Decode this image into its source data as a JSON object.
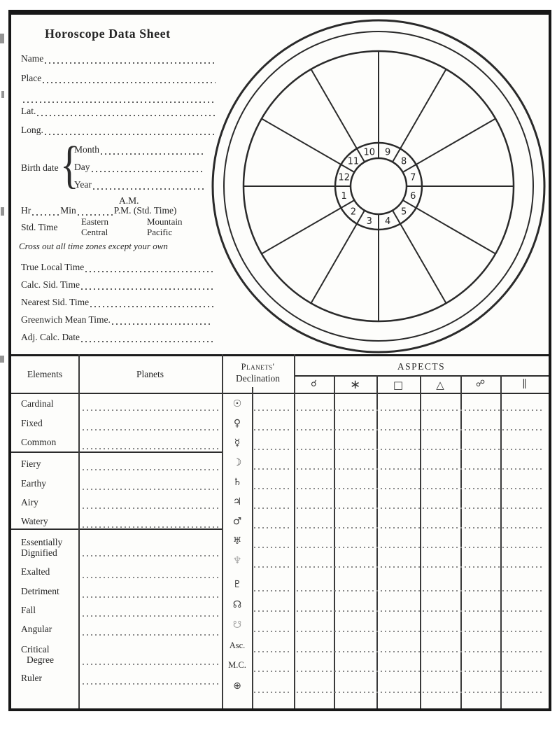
{
  "title": "Horoscope Data Sheet",
  "fields": {
    "name": "Name",
    "place": "Place",
    "lat": "Lat.",
    "long": "Long.",
    "true_local_time": "True Local Time",
    "calc_sid_time": "Calc. Sid. Time",
    "nearest_sid_time": "Nearest Sid. Time",
    "greenwich_mean_time": "Greenwich Mean Time.",
    "adj_calc_date": "Adj. Calc. Date"
  },
  "birth_date": {
    "label": "Birth date",
    "month": "Month",
    "day": "Day",
    "year": "Year"
  },
  "time_row": {
    "am": "A.M.",
    "hr": "Hr",
    "min": "Min",
    "pm": "P.M. (Std. Time)"
  },
  "std_time": {
    "label": "Std. Time",
    "zone1": "Eastern",
    "zone2": "Central",
    "zone3": "Mountain",
    "zone4": "Pacific"
  },
  "note": "Cross out all time zones except your own",
  "wheel": {
    "houses": [
      "1",
      "2",
      "3",
      "4",
      "5",
      "6",
      "7",
      "8",
      "9",
      "10",
      "11",
      "12"
    ]
  },
  "table": {
    "header": {
      "elements": "Elements",
      "planets": "Planets",
      "declination_line1": "Planets'",
      "declination_line2": "Declination",
      "aspects": "ASPECTS"
    },
    "aspect_columns": [
      {
        "name": "conjunction",
        "glyph": "☌"
      },
      {
        "name": "sextile",
        "glyph": "∗"
      },
      {
        "name": "square",
        "glyph": "□"
      },
      {
        "name": "trine",
        "glyph": "△"
      },
      {
        "name": "opposition",
        "glyph": "☍"
      },
      {
        "name": "parallel",
        "glyph": "∥"
      }
    ],
    "element_rows": [
      {
        "label": "Cardinal",
        "label2": ""
      },
      {
        "label": "Fixed",
        "label2": ""
      },
      {
        "label": "Common",
        "label2": ""
      },
      {
        "label": "Fiery",
        "label2": ""
      },
      {
        "label": "Earthy",
        "label2": ""
      },
      {
        "label": "Airy",
        "label2": ""
      },
      {
        "label": "Watery",
        "label2": ""
      },
      {
        "label": "Essentially",
        "label2": "Dignified"
      },
      {
        "label": "Exalted",
        "label2": ""
      },
      {
        "label": "Detriment",
        "label2": ""
      },
      {
        "label": "Fall",
        "label2": ""
      },
      {
        "label": "Angular",
        "label2": ""
      },
      {
        "label": "Critical",
        "label2": "Degree"
      },
      {
        "label": "Ruler",
        "label2": ""
      }
    ],
    "declination_rows": [
      {
        "name": "sun",
        "glyph": "☉"
      },
      {
        "name": "venus",
        "glyph": "♀"
      },
      {
        "name": "mercury",
        "glyph": "☿"
      },
      {
        "name": "moon",
        "glyph": "☽"
      },
      {
        "name": "saturn",
        "glyph": "♄"
      },
      {
        "name": "jupiter",
        "glyph": "♃"
      },
      {
        "name": "mars",
        "glyph": "♂"
      },
      {
        "name": "uranus",
        "glyph": "♅"
      },
      {
        "name": "neptune",
        "glyph": "♆"
      },
      {
        "name": "pluto",
        "glyph": "♇"
      },
      {
        "name": "north-node",
        "glyph": "☊"
      },
      {
        "name": "south-node",
        "glyph": "☋"
      },
      {
        "name": "ascendant",
        "glyph": "Asc."
      },
      {
        "name": "midheaven",
        "glyph": "M.C."
      },
      {
        "name": "part-of-fortune",
        "glyph": "⊕"
      }
    ]
  },
  "colors": {
    "ink": "#262626",
    "line": "#3a3a3a",
    "dotted": "#8a8a8a",
    "paper": "#fdfdfb"
  }
}
